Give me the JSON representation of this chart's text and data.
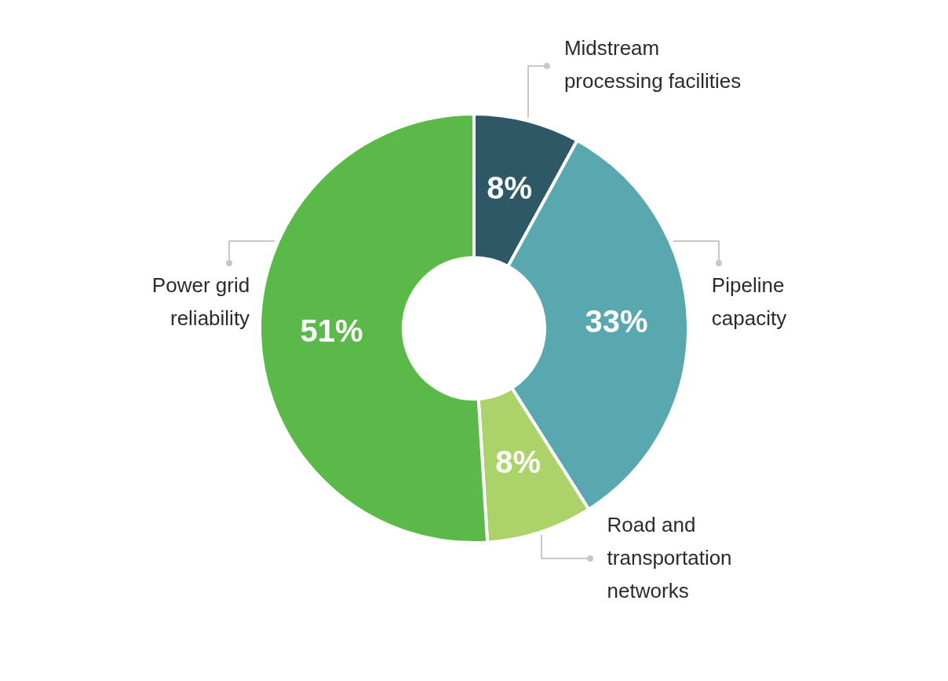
{
  "chart_data": {
    "type": "donut",
    "categories": [
      "Midstream processing facilities",
      "Pipeline capacity",
      "Road and transportation networks",
      "Power grid reliability"
    ],
    "values": [
      8,
      33,
      8,
      51
    ],
    "colors": [
      "#2f5866",
      "#59a7af",
      "#acd36a",
      "#5bb94a"
    ],
    "value_labels": [
      "8%",
      "33%",
      "8%",
      "51%"
    ]
  }
}
